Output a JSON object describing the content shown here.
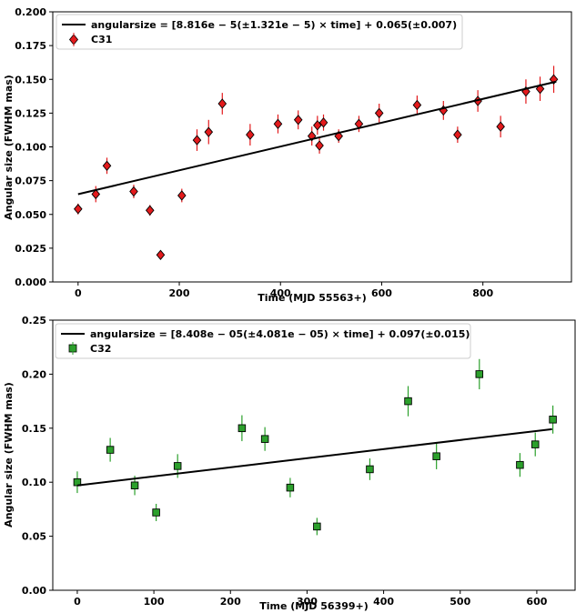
{
  "chart_data": [
    {
      "type": "scatter",
      "xlabel": "Time (MJD 55563+)",
      "ylabel": "Angular size (FWHM  mas)",
      "xlim": [
        -50,
        975
      ],
      "ylim": [
        0.0,
        0.2
      ],
      "xticks": [
        0,
        200,
        400,
        600,
        800
      ],
      "xtick_labels": [
        "0",
        "200",
        "400",
        "600",
        "800"
      ],
      "yticks": [
        0.0,
        0.025,
        0.05,
        0.075,
        0.1,
        0.125,
        0.15,
        0.175,
        0.2
      ],
      "ytick_labels": [
        "0.000",
        "0.025",
        "0.050",
        "0.075",
        "0.100",
        "0.125",
        "0.150",
        "0.175",
        "0.200"
      ],
      "legend": {
        "position": "top-left",
        "fit_label": "angularsize = [8.816e − 5(±1.321e − 5) × time] + 0.065(±0.007)",
        "series_label": "C31"
      },
      "fit": {
        "slope": 8.816e-05,
        "intercept": 0.065,
        "x_range": [
          0,
          945
        ]
      },
      "series": [
        {
          "name": "C31",
          "marker": "diamond",
          "color": "#e31a1c",
          "x": [
            0,
            35,
            57,
            110,
            142,
            163,
            205,
            235,
            258,
            285,
            340,
            395,
            435,
            462,
            473,
            477,
            485,
            515,
            555,
            595,
            670,
            722,
            750,
            790,
            835,
            885,
            913,
            940
          ],
          "y": [
            0.054,
            0.065,
            0.086,
            0.067,
            0.053,
            0.02,
            0.064,
            0.105,
            0.111,
            0.132,
            0.109,
            0.117,
            0.12,
            0.108,
            0.116,
            0.101,
            0.118,
            0.108,
            0.117,
            0.125,
            0.131,
            0.127,
            0.109,
            0.134,
            0.115,
            0.141,
            0.143,
            0.15
          ],
          "yerr": [
            0.004,
            0.006,
            0.006,
            0.005,
            0.004,
            0.003,
            0.005,
            0.008,
            0.009,
            0.008,
            0.008,
            0.007,
            0.007,
            0.007,
            0.007,
            0.006,
            0.006,
            0.005,
            0.006,
            0.007,
            0.007,
            0.007,
            0.006,
            0.008,
            0.008,
            0.009,
            0.009,
            0.01
          ]
        }
      ]
    },
    {
      "type": "scatter",
      "xlabel": "Time (MJD 56399+)",
      "ylabel": "Angular size (FWHM  mas)",
      "xlim": [
        -32,
        650
      ],
      "ylim": [
        0.0,
        0.25
      ],
      "xticks": [
        0,
        100,
        200,
        300,
        400,
        500,
        600
      ],
      "xtick_labels": [
        "0",
        "100",
        "200",
        "300",
        "400",
        "500",
        "600"
      ],
      "yticks": [
        0.0,
        0.05,
        0.1,
        0.15,
        0.2,
        0.25
      ],
      "ytick_labels": [
        "0.00",
        "0.05",
        "0.10",
        "0.15",
        "0.20",
        "0.25"
      ],
      "legend": {
        "position": "top-left",
        "fit_label": "angularsize = [8.408e − 05(±4.081e − 05) × time] + 0.097(±0.015)",
        "series_label": "C32"
      },
      "fit": {
        "slope": 8.408e-05,
        "intercept": 0.097,
        "x_range": [
          0,
          620
        ]
      },
      "series": [
        {
          "name": "C32",
          "marker": "square",
          "color": "#2ca02c",
          "x": [
            0,
            43,
            75,
            103,
            131,
            215,
            245,
            278,
            313,
            382,
            432,
            469,
            525,
            578,
            598,
            621
          ],
          "y": [
            0.1,
            0.13,
            0.097,
            0.072,
            0.115,
            0.15,
            0.14,
            0.095,
            0.059,
            0.112,
            0.175,
            0.124,
            0.2,
            0.116,
            0.135,
            0.158
          ],
          "yerr": [
            0.01,
            0.011,
            0.009,
            0.008,
            0.011,
            0.012,
            0.011,
            0.009,
            0.008,
            0.01,
            0.014,
            0.012,
            0.014,
            0.011,
            0.011,
            0.013
          ]
        }
      ]
    }
  ]
}
